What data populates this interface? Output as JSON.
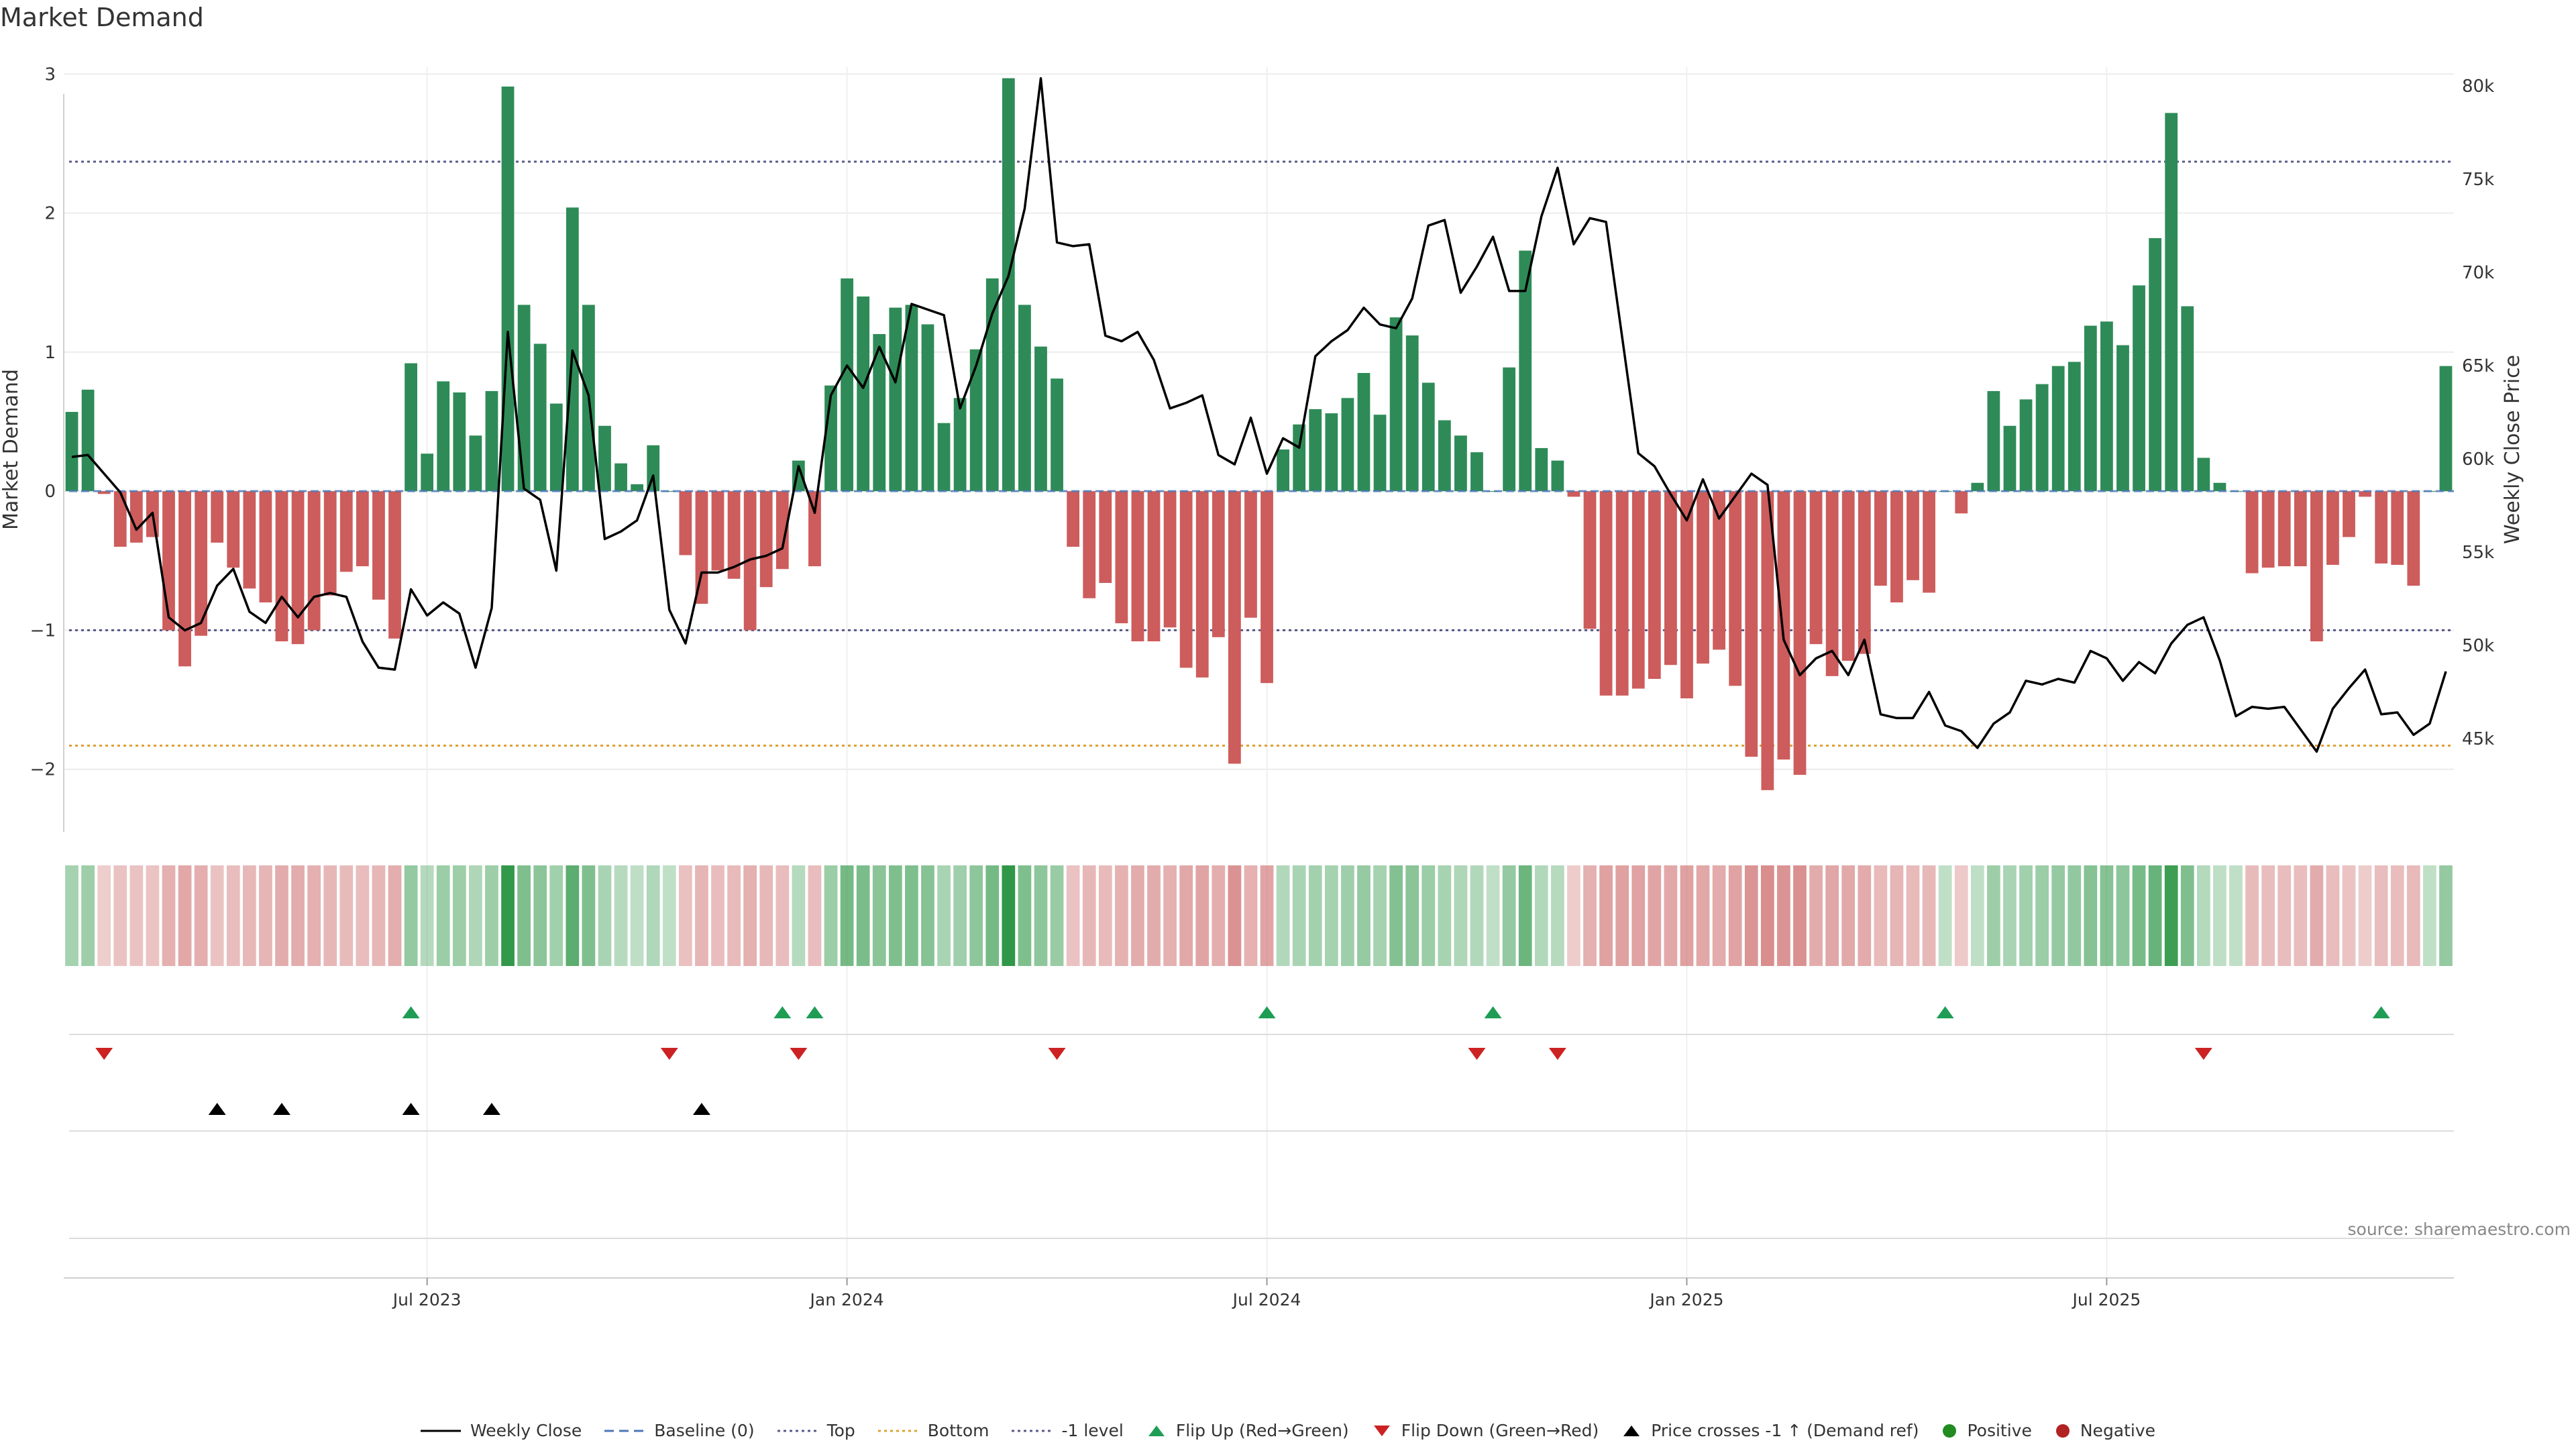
{
  "chart_data": {
    "type": "bar",
    "title": "Market Demand",
    "source": "source: sharemaestro.com",
    "ylabel_left": "Market Demand",
    "ylabel_right": "Weekly Close Price",
    "ylim_left": [
      -2.45,
      3.05
    ],
    "ylim_right": [
      40000,
      81000
    ],
    "yticks_left": [
      "3",
      "2",
      "1",
      "0",
      "−1",
      "−2"
    ],
    "yticks_left_values": [
      3,
      2,
      1,
      0,
      -1,
      -2
    ],
    "yticks_right": [
      "80k",
      "75k",
      "70k",
      "65k",
      "60k",
      "55k",
      "50k",
      "45k"
    ],
    "yticks_right_values": [
      80000,
      75000,
      70000,
      65000,
      60000,
      55000,
      50000,
      45000
    ],
    "xticks": [
      "Jul 2023",
      "Jan 2024",
      "Jul 2024",
      "Jan 2025",
      "Jul 2025"
    ],
    "xtick_weeks": [
      22,
      48,
      74,
      100,
      126
    ],
    "reference_lines": {
      "top": 2.37,
      "bottom": -1.83,
      "minus_one": -1,
      "baseline": 0
    },
    "demand": [
      0.57,
      0.73,
      -0.02,
      -0.4,
      -0.37,
      -0.33,
      -1.0,
      -1.26,
      -1.04,
      -0.37,
      -0.55,
      -0.7,
      -0.8,
      -1.08,
      -1.1,
      -1.0,
      -0.75,
      -0.58,
      -0.54,
      -0.78,
      -1.06,
      0.92,
      0.27,
      0.79,
      0.71,
      0.4,
      0.72,
      2.91,
      1.34,
      1.06,
      0.63,
      2.04,
      1.34,
      0.47,
      0.2,
      0.05,
      0.33,
      0.0,
      -0.46,
      -0.81,
      -0.57,
      -0.63,
      -1.0,
      -0.69,
      -0.56,
      0.22,
      -0.54,
      0.76,
      1.53,
      1.4,
      1.13,
      1.32,
      1.34,
      1.2,
      0.49,
      0.67,
      1.02,
      1.53,
      2.97,
      1.34,
      1.04,
      0.81,
      -0.4,
      -0.77,
      -0.66,
      -0.95,
      -1.08,
      -1.08,
      -0.98,
      -1.27,
      -1.34,
      -1.05,
      -1.96,
      -0.91,
      -1.38,
      0.3,
      0.48,
      0.59,
      0.56,
      0.67,
      0.85,
      0.55,
      1.25,
      1.12,
      0.78,
      0.51,
      0.4,
      0.28,
      0.0,
      0.89,
      1.73,
      0.31,
      0.22,
      -0.04,
      -0.99,
      -1.47,
      -1.47,
      -1.42,
      -1.35,
      -1.25,
      -1.49,
      -1.24,
      -1.14,
      -1.4,
      -1.91,
      -2.15,
      -1.93,
      -2.04,
      -1.1,
      -1.33,
      -1.22,
      -1.17,
      -0.68,
      -0.8,
      -0.64,
      -0.73,
      0.0,
      -0.16,
      0.06,
      0.72,
      0.47,
      0.66,
      0.77,
      0.9,
      0.93,
      1.19,
      1.22,
      1.05,
      1.48,
      1.82,
      2.72,
      1.33,
      0.24,
      0.06,
      0.0,
      -0.59,
      -0.55,
      -0.54,
      -0.54,
      -1.08,
      -0.53,
      -0.33,
      -0.04,
      -0.52,
      -0.53,
      -0.68,
      0.0,
      0.9
    ],
    "close": [
      60100,
      60200,
      59200,
      58200,
      56200,
      57100,
      51500,
      50800,
      51200,
      53200,
      54100,
      51800,
      51200,
      52600,
      51500,
      52600,
      52800,
      52600,
      50200,
      48800,
      48700,
      53000,
      51600,
      52300,
      51700,
      48800,
      52000,
      66800,
      58400,
      57800,
      54000,
      65800,
      63400,
      55700,
      56100,
      56700,
      59100,
      51900,
      50100,
      53900,
      53900,
      54200,
      54600,
      54800,
      55200,
      59600,
      57100,
      63400,
      65000,
      63800,
      66000,
      64100,
      68300,
      68000,
      67700,
      62700,
      65000,
      67800,
      69800,
      73400,
      80400,
      71600,
      71400,
      71500,
      66600,
      66300,
      66800,
      65300,
      62700,
      63000,
      63400,
      60200,
      59700,
      62200,
      59200,
      61100,
      60600,
      65500,
      66300,
      66900,
      68100,
      67200,
      67000,
      68600,
      72500,
      72800,
      68900,
      70300,
      71900,
      69000,
      69000,
      73000,
      75600,
      71500,
      72900,
      72700,
      66500,
      60300,
      59600,
      58100,
      56700,
      58900,
      56800,
      58000,
      59200,
      58600,
      50300,
      48400,
      49300,
      49700,
      48400,
      50300,
      46300,
      46100,
      46100,
      47500,
      45700,
      45400,
      44500,
      45800,
      46400,
      48100,
      47900,
      48200,
      48000,
      49700,
      49300,
      48100,
      49100,
      48500,
      50100,
      51100,
      51500,
      49200,
      46200,
      46700,
      46600,
      46700,
      45500,
      44300,
      46600,
      47700,
      48700,
      46300,
      46400,
      45200,
      45800,
      48600
    ],
    "flip_up_weeks": [
      21,
      44,
      46,
      74,
      88,
      116,
      143
    ],
    "flip_down_weeks": [
      2,
      37,
      45,
      61,
      87,
      92,
      132
    ],
    "price_cross_weeks": [
      9,
      13,
      21,
      26,
      39
    ],
    "legend": [
      "Weekly Close",
      "Baseline (0)",
      "Top",
      "Bottom",
      "-1 level",
      "Flip Up (Red→Green)",
      "Flip Down (Green→Red)",
      "Price crosses -1 ↑ (Demand ref)",
      "Positive",
      "Negative"
    ],
    "colors": {
      "positive": "#2e8b57",
      "negative": "#cd5c5c",
      "line": "#000000",
      "top": "#5a5a8a",
      "bottom": "#e0a030",
      "baseline": "#4a78b8",
      "flip_up": "#1f9d55",
      "flip_down": "#cc2222",
      "pos_dot": "#228b22",
      "neg_dot": "#b22222"
    }
  }
}
